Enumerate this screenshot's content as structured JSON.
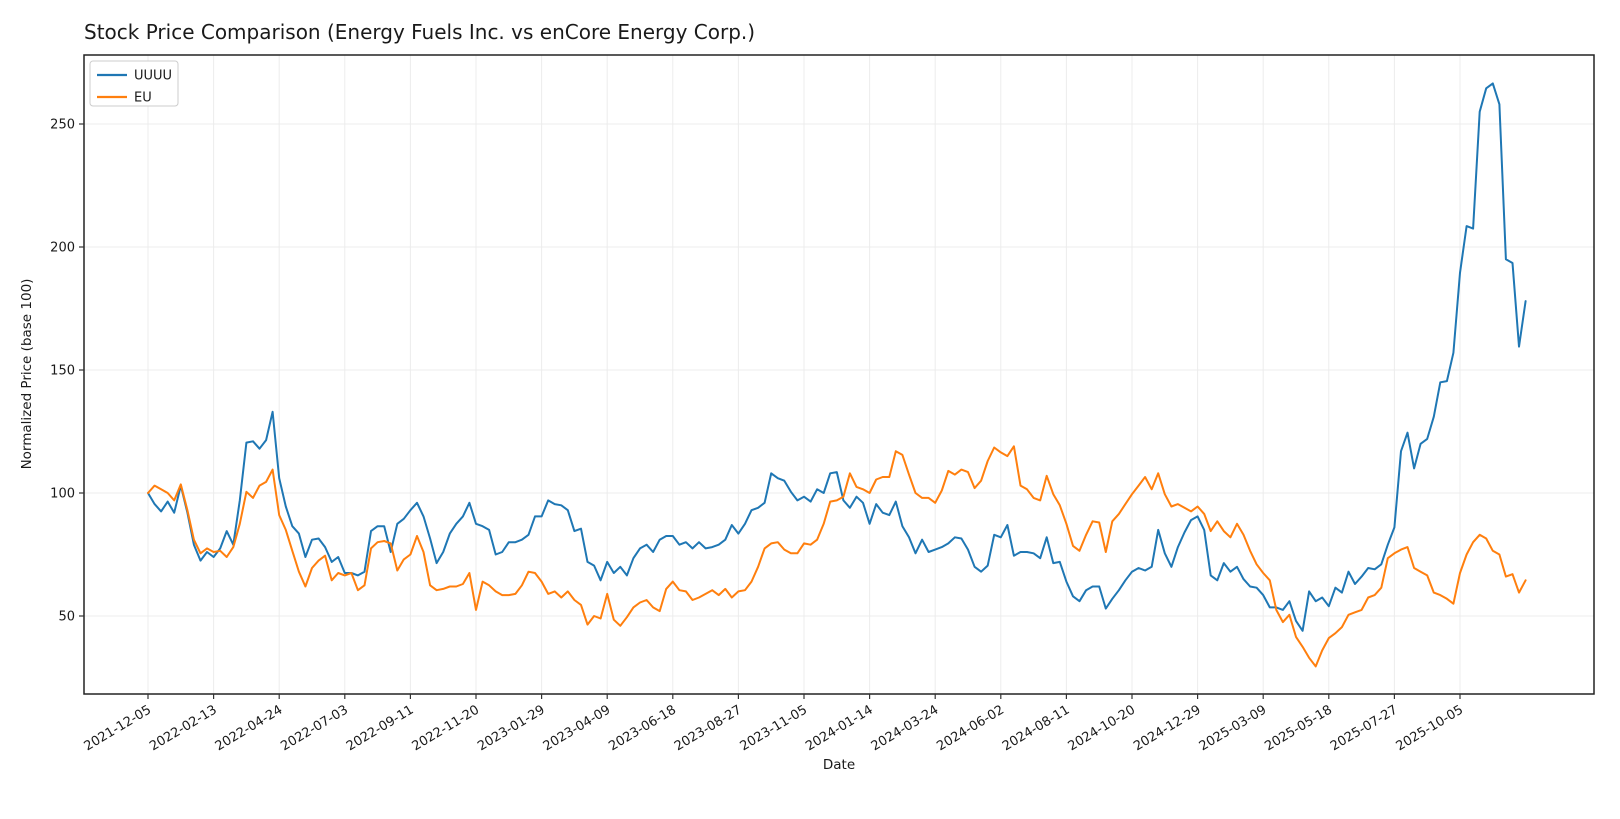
{
  "page_title": "Stock Price Comparison (Energy Fuels Inc. vs enCore Energy Corp.)",
  "chart_data": {
    "type": "line",
    "title": "Stock Price Comparison (Energy Fuels Inc. vs enCore Energy Corp.)",
    "xlabel": "Date",
    "ylabel": "Normalized Price (base 100)",
    "x_start_date": "2021-12-05",
    "x_interval_days": 7,
    "x_tick_labels": [
      "2021-12-05",
      "2022-02-13",
      "2022-04-24",
      "2022-07-03",
      "2022-09-11",
      "2022-11-20",
      "2023-01-29",
      "2023-04-09",
      "2023-06-18",
      "2023-08-27",
      "2023-11-05",
      "2024-01-14",
      "2024-03-24",
      "2024-06-02",
      "2024-08-11",
      "2024-10-20",
      "2024-12-29",
      "2025-03-09",
      "2025-05-18",
      "2025-07-27",
      "2025-10-05"
    ],
    "x_ticks_every_n_points": 10,
    "y_ticks": [
      50,
      100,
      150,
      200,
      250
    ],
    "ylim": [
      18,
      278
    ],
    "grid": true,
    "legend_position": "upper left",
    "series": [
      {
        "name": "UUUU",
        "color": "#1f77b4",
        "values": [
          100,
          95.5,
          92.5,
          96.5,
          92,
          103,
          92,
          79,
          72.5,
          76,
          74,
          77.5,
          84.5,
          79,
          97,
          120.5,
          121,
          118,
          121.5,
          133,
          106,
          94.5,
          86.5,
          83.5,
          74,
          81,
          81.5,
          78,
          72,
          74,
          67.5,
          67.5,
          66.5,
          68,
          84.5,
          86.5,
          86.5,
          76,
          87.5,
          89.5,
          93,
          96,
          90.5,
          81.5,
          71.5,
          76,
          83.5,
          87.5,
          90.5,
          96,
          87.5,
          86.5,
          85,
          75,
          76,
          80,
          80,
          81,
          83,
          90.5,
          90.5,
          97,
          95.5,
          95,
          93,
          84.5,
          85.5,
          72,
          70.5,
          64.5,
          72,
          67.5,
          70,
          66.5,
          73.5,
          77.5,
          79,
          76,
          81,
          82.5,
          82.5,
          79,
          80,
          77.5,
          80,
          77.5,
          78,
          79,
          81,
          87,
          83.5,
          87.5,
          93,
          94,
          96,
          108,
          106,
          105,
          100.5,
          97,
          98.5,
          96.5,
          101.5,
          100,
          108,
          108.5,
          97,
          94,
          98.5,
          96,
          87.5,
          95.5,
          92,
          91,
          96.5,
          86.5,
          82,
          75.5,
          81,
          76,
          77,
          78,
          79.5,
          82,
          81.5,
          77,
          70,
          68,
          70.5,
          83,
          82,
          87,
          74.5,
          76,
          76,
          75.5,
          73.5,
          82,
          71.5,
          72,
          64,
          58,
          56,
          60.5,
          62,
          62,
          53,
          57,
          60.5,
          64.5,
          68,
          69.5,
          68.5,
          70,
          85,
          75.5,
          70,
          78,
          84,
          89,
          90.5,
          85,
          66.5,
          64.5,
          71.5,
          68,
          70,
          65,
          62,
          61.5,
          58.5,
          53.5,
          53.5,
          52.5,
          56,
          48,
          44,
          60,
          56,
          57.5,
          54,
          61.5,
          59.5,
          68,
          63,
          66,
          69.5,
          69,
          71,
          79,
          86,
          117,
          124.5,
          110,
          120,
          122,
          131,
          145,
          145.5,
          157,
          189.5,
          208.5,
          207.5,
          255,
          264.5,
          266.5,
          258,
          195,
          193.5,
          159.5,
          178
        ]
      },
      {
        "name": "EU",
        "color": "#ff7f0e",
        "values": [
          100,
          103,
          101.5,
          100,
          97,
          103.5,
          93,
          81,
          75.5,
          77.5,
          76,
          76.5,
          74,
          78,
          87.5,
          100.5,
          98,
          103,
          104.5,
          109.5,
          91,
          85,
          76.5,
          68,
          62,
          69.5,
          72.5,
          74.5,
          64.5,
          67.5,
          66.5,
          67.5,
          60.5,
          62.5,
          77.5,
          80,
          80.5,
          79.5,
          68.5,
          73,
          75,
          82.5,
          76,
          62.5,
          60.5,
          61,
          62,
          62,
          63,
          67.5,
          52.5,
          64,
          62.5,
          60,
          58.5,
          58.5,
          59,
          62.5,
          68,
          67.5,
          64,
          59,
          60,
          57.5,
          60,
          56.5,
          54.5,
          46.5,
          50,
          49,
          59,
          48.5,
          46,
          49.5,
          53.5,
          55.5,
          56.5,
          53.5,
          52,
          61,
          64,
          60.5,
          60,
          56.5,
          57.5,
          59,
          60.5,
          58.5,
          61,
          57.5,
          60,
          60.5,
          64,
          70,
          77.5,
          79.5,
          80,
          77,
          75.5,
          75.5,
          79.5,
          79,
          81,
          87.5,
          96.5,
          97,
          98.5,
          108,
          102.5,
          101.5,
          100,
          105.5,
          106.5,
          106.5,
          117,
          115.5,
          107.5,
          100,
          98,
          98,
          96,
          101,
          109,
          107.5,
          109.5,
          108.5,
          102,
          105,
          113,
          118.5,
          116.5,
          115,
          119,
          103,
          101.5,
          98,
          97,
          107,
          99.5,
          95,
          87.5,
          78.5,
          76.5,
          83,
          88.5,
          88,
          76,
          88.5,
          91.5,
          95.5,
          99.5,
          103,
          106.5,
          101.5,
          108,
          99.5,
          94.5,
          95.5,
          94,
          92.5,
          94.5,
          91.5,
          84.5,
          88.5,
          84.5,
          82,
          87.5,
          83,
          76.5,
          71,
          67.5,
          64.5,
          52.5,
          47.5,
          50.5,
          41.5,
          37.5,
          33,
          29.5,
          36,
          41,
          43,
          45.5,
          50.5,
          51.5,
          52.5,
          57.5,
          58.5,
          61.5,
          73.5,
          75.5,
          77,
          78,
          69.5,
          68,
          66.5,
          59.5,
          58.5,
          57,
          55,
          67.5,
          75,
          80,
          83,
          81.5,
          76.5,
          75,
          66,
          67,
          59.5,
          64.5
        ]
      }
    ],
    "colors": {
      "grid": "#ececec",
      "spine": "#222222",
      "tick": "#333333",
      "legend_border": "#cccccc",
      "background": "#ffffff"
    }
  }
}
